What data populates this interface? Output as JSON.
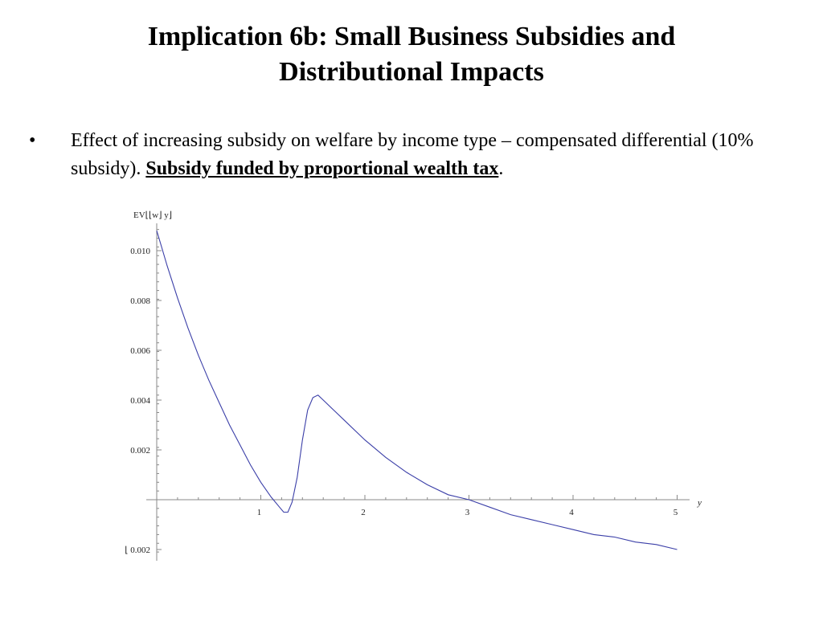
{
  "slide": {
    "title_line1": "Implication 6b:  Small Business Subsidies and",
    "title_line2": "Distributional Impacts",
    "bullet_symbol": "•",
    "bullet_text": "Effect of increasing subsidy on welfare by income type – compensated differential (10% subsidy).   ",
    "bullet_emphasis": "Subsidy funded by proportional wealth tax",
    "bullet_end": "."
  },
  "chart_data": {
    "type": "line",
    "ylabel": "EV⌊⌊w⌋ y⌋",
    "xlabel": "y",
    "xlim": [
      0,
      5
    ],
    "ylim": [
      -0.0022,
      0.011
    ],
    "x_ticks": [
      "1",
      "2",
      "3",
      "4",
      "5"
    ],
    "y_ticks": [
      "0.010",
      "0.008",
      "0.006",
      "0.004",
      "0.002",
      "⌊ 0.002"
    ],
    "y_tick_values": [
      0.01,
      0.008,
      0.006,
      0.004,
      0.002,
      -0.002
    ],
    "grid": false,
    "line_color": "#3b3fa8",
    "series": [
      {
        "x": [
          0.0,
          0.05,
          0.1,
          0.2,
          0.3,
          0.4,
          0.5,
          0.6,
          0.7,
          0.8,
          0.9,
          1.0,
          1.1,
          1.18,
          1.22,
          1.26,
          1.3,
          1.35,
          1.4,
          1.45,
          1.5,
          1.55,
          1.6,
          1.7,
          1.8,
          2.0,
          2.2,
          2.4,
          2.6,
          2.8,
          3.0,
          3.2,
          3.4,
          3.6,
          3.8,
          4.0,
          4.2,
          4.4,
          4.6,
          4.8,
          5.0
        ],
        "y": [
          0.0108,
          0.0101,
          0.0094,
          0.0081,
          0.0069,
          0.0058,
          0.0048,
          0.0039,
          0.003,
          0.0022,
          0.0014,
          0.0007,
          0.0001,
          -0.0003,
          -0.0005,
          -0.0005,
          -0.0001,
          0.0009,
          0.0024,
          0.0036,
          0.0041,
          0.0042,
          0.004,
          0.0036,
          0.0032,
          0.0024,
          0.0017,
          0.0011,
          0.0006,
          0.0002,
          0.0,
          -0.0003,
          -0.0006,
          -0.0008,
          -0.001,
          -0.0012,
          -0.0014,
          -0.0015,
          -0.0017,
          -0.0018,
          -0.002
        ]
      }
    ]
  }
}
